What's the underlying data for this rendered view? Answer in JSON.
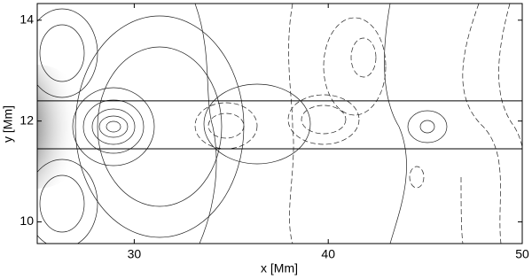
{
  "chart_data": {
    "type": "contour",
    "xlabel": "x [Mm]",
    "ylabel": "y [Mm]",
    "xlim": [
      25,
      50
    ],
    "ylim": [
      9.57,
      14.33
    ],
    "xticks": [
      30,
      40,
      50
    ],
    "yticks": [
      10,
      12,
      14
    ],
    "hlines": [
      12.4,
      11.45
    ],
    "line_color": "#000",
    "grid": false
  }
}
